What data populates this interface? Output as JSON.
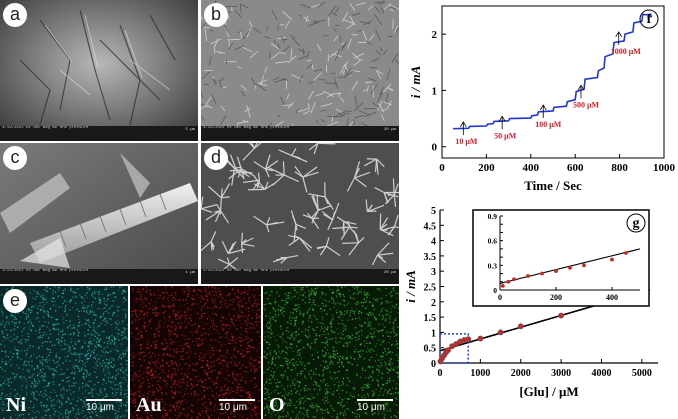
{
  "panels": {
    "a": {
      "letter": "a",
      "databar": "4/19/2021 HV det mag WD HFW pressure",
      "scalebar": "5 μm"
    },
    "b": {
      "letter": "b",
      "databar": "4/19/2021 HV det mag WD HFW pressure",
      "scalebar": "20 μm"
    },
    "c": {
      "letter": "c",
      "databar": "1/13/2021 HV det mag WD HFW pressure",
      "scalebar": "1 μm"
    },
    "d": {
      "letter": "d",
      "databar": "1/13/2021 HV det mag WD HFW pressure",
      "scalebar": "20 μm"
    },
    "e": {
      "letter": "e"
    }
  },
  "eds": [
    {
      "element": "Ni",
      "scale": "10 μm",
      "color": "#2fb6b6"
    },
    {
      "element": "Au",
      "scale": "10 μm",
      "color": "#c0242a"
    },
    {
      "element": "O",
      "scale": "10 μm",
      "color": "#3fbf3a"
    }
  ],
  "chart_data": [
    {
      "panel": "f",
      "type": "line",
      "xlabel": "Time / Sec",
      "ylabel": "i / mA",
      "xlim": [
        0,
        1000
      ],
      "ylim": [
        -0.2,
        2.5
      ],
      "xticks": [
        "0",
        "200",
        "400",
        "600",
        "800",
        "1000"
      ],
      "yticks": [
        "0",
        "1",
        "2"
      ],
      "line_color": "#1f35d6",
      "series": [
        {
          "x": [
            50,
            120,
            200,
            230,
            300,
            400,
            430,
            500,
            560,
            600,
            640,
            700,
            730,
            770,
            820,
            860,
            900,
            940
          ],
          "y": [
            0.32,
            0.36,
            0.4,
            0.45,
            0.5,
            0.55,
            0.62,
            0.7,
            0.8,
            0.98,
            1.2,
            1.35,
            1.6,
            1.85,
            2.0,
            2.2,
            2.35,
            2.3
          ]
        }
      ],
      "annotations": [
        {
          "text": "10 μM",
          "x": 60,
          "y": 0.05
        },
        {
          "text": "50 μM",
          "x": 235,
          "y": 0.15
        },
        {
          "text": "100 μM",
          "x": 420,
          "y": 0.35
        },
        {
          "text": "500 μM",
          "x": 590,
          "y": 0.7
        },
        {
          "text": "1000 μM",
          "x": 760,
          "y": 1.65
        }
      ]
    },
    {
      "panel": "g",
      "type": "scatter",
      "xlabel": "[Glu] / μM",
      "ylabel": "i / mA",
      "xlim": [
        0,
        5400
      ],
      "ylim": [
        0,
        5
      ],
      "xticks": [
        "0",
        "1000",
        "2000",
        "3000",
        "4000",
        "5000"
      ],
      "yticks": [
        "0",
        "0.5",
        "1",
        "1.5",
        "2",
        "2.5",
        "3",
        "3.5",
        "4",
        "4.5",
        "5"
      ],
      "x": [
        10,
        50,
        100,
        150,
        200,
        300,
        400,
        500,
        600,
        700,
        1000,
        1500,
        2000,
        3000,
        4000,
        5000
      ],
      "y": [
        0.05,
        0.15,
        0.25,
        0.35,
        0.42,
        0.55,
        0.62,
        0.7,
        0.75,
        0.78,
        0.8,
        1.0,
        1.2,
        1.55,
        1.95,
        2.4
      ],
      "fit_line": [
        [
          0,
          0.4
        ],
        [
          5200,
          2.4
        ]
      ],
      "inset": {
        "xlim": [
          0,
          500
        ],
        "ylim": [
          0,
          0.9
        ],
        "xticks": [
          "0",
          "200",
          "400"
        ],
        "yticks": [
          "0",
          "0.1",
          "0.2",
          "0.3",
          "0.4",
          "0.5",
          "0.6",
          "0.7",
          "0.8",
          "0.9"
        ],
        "x": [
          10,
          30,
          50,
          100,
          150,
          200,
          250,
          300,
          400,
          450
        ],
        "y": [
          0.05,
          0.1,
          0.13,
          0.17,
          0.2,
          0.23,
          0.27,
          0.3,
          0.37,
          0.45
        ],
        "fit_line": [
          [
            0,
            0.08
          ],
          [
            500,
            0.5
          ]
        ]
      }
    }
  ]
}
